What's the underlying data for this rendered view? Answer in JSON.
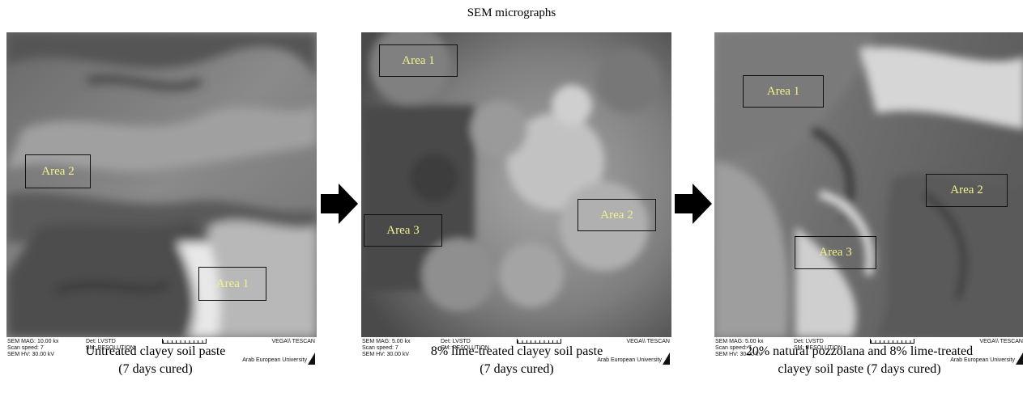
{
  "title": "SEM micrographs",
  "panels": [
    {
      "areas": [
        "Area 2",
        "Area 1"
      ],
      "info": {
        "mag": "SEM MAG: 10.00 kx",
        "speed": "Scan speed: 7",
        "hv": "SEM HV: 30.00 kV",
        "det": "Det: LVSTD",
        "sm": "SM: RESOLUTION",
        "brand": "VEGA\\\\ TESCAN",
        "uni": "Arab European University"
      },
      "caption_line1": "Untreated clayey soil paste",
      "caption_line2": "(7 days cured)"
    },
    {
      "areas": [
        "Area 1",
        "Area 3",
        "Area 2"
      ],
      "info": {
        "mag": "SEM MAG: 5.00 kx",
        "speed": "Scan speed: 7",
        "hv": "SEM HV: 30.00 kV",
        "det": "Det: LVSTD",
        "sm": "SM: RESOLUTION",
        "brand": "VEGA\\\\ TESCAN",
        "uni": "Arab European University"
      },
      "caption_line1": "8% lime-treated clayey soil paste",
      "caption_line2": "(7 days cured)"
    },
    {
      "areas": [
        "Area 1",
        "Area 2",
        "Area 3"
      ],
      "info": {
        "mag": "SEM MAG: 5.00 kx",
        "speed": "Scan speed: 7",
        "hv": "SEM HV: 30.00 kV",
        "det": "Det: LVSTD",
        "sm": "SM: RESOLUTION",
        "brand": "VEGA\\\\ TESCAN",
        "uni": "Arab European University"
      },
      "caption_line1": "20% natural pozzolana and 8% lime-treated",
      "caption_line2": "clayey soil paste (7 days cured)"
    }
  ]
}
